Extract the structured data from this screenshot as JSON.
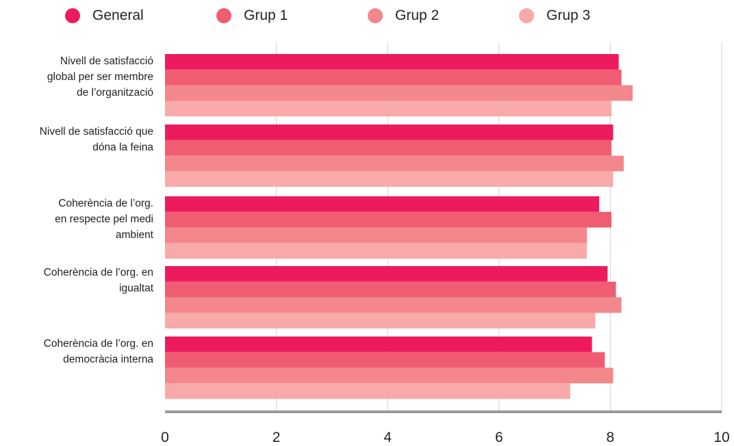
{
  "chart_data": {
    "type": "bar",
    "orientation": "horizontal",
    "categories": [
      [
        "Nivell de satisfacció",
        "global per ser membre",
        "de l’organització"
      ],
      [
        "Nivell de satisfacció que",
        "dóna la feina"
      ],
      [
        "Coherència de l’org.",
        "en respecte pel medi",
        "ambient"
      ],
      [
        "Coherència de l’org. en",
        "igualtat"
      ],
      [
        "Coherència de l’org. en",
        "democràcia interna"
      ]
    ],
    "series": [
      {
        "name": "General",
        "color": "#ee1a5e",
        "values": [
          8.15,
          8.05,
          7.8,
          7.95,
          7.67
        ]
      },
      {
        "name": "Grup 1",
        "color": "#f05c72",
        "values": [
          8.2,
          8.02,
          8.02,
          8.1,
          7.9
        ]
      },
      {
        "name": "Grup 2",
        "color": "#f3878c",
        "values": [
          8.4,
          8.24,
          7.58,
          8.2,
          8.05
        ]
      },
      {
        "name": "Grup 3",
        "color": "#f8aaaa",
        "values": [
          8.02,
          8.05,
          7.58,
          7.73,
          7.28
        ]
      }
    ],
    "xlim": [
      0,
      10
    ],
    "xticks": [
      "0",
      "2",
      "4",
      "6",
      "8",
      "10"
    ],
    "grid": true,
    "legend_position": "top",
    "axis_color": "#999999",
    "grid_color": "#d0d0d0"
  }
}
